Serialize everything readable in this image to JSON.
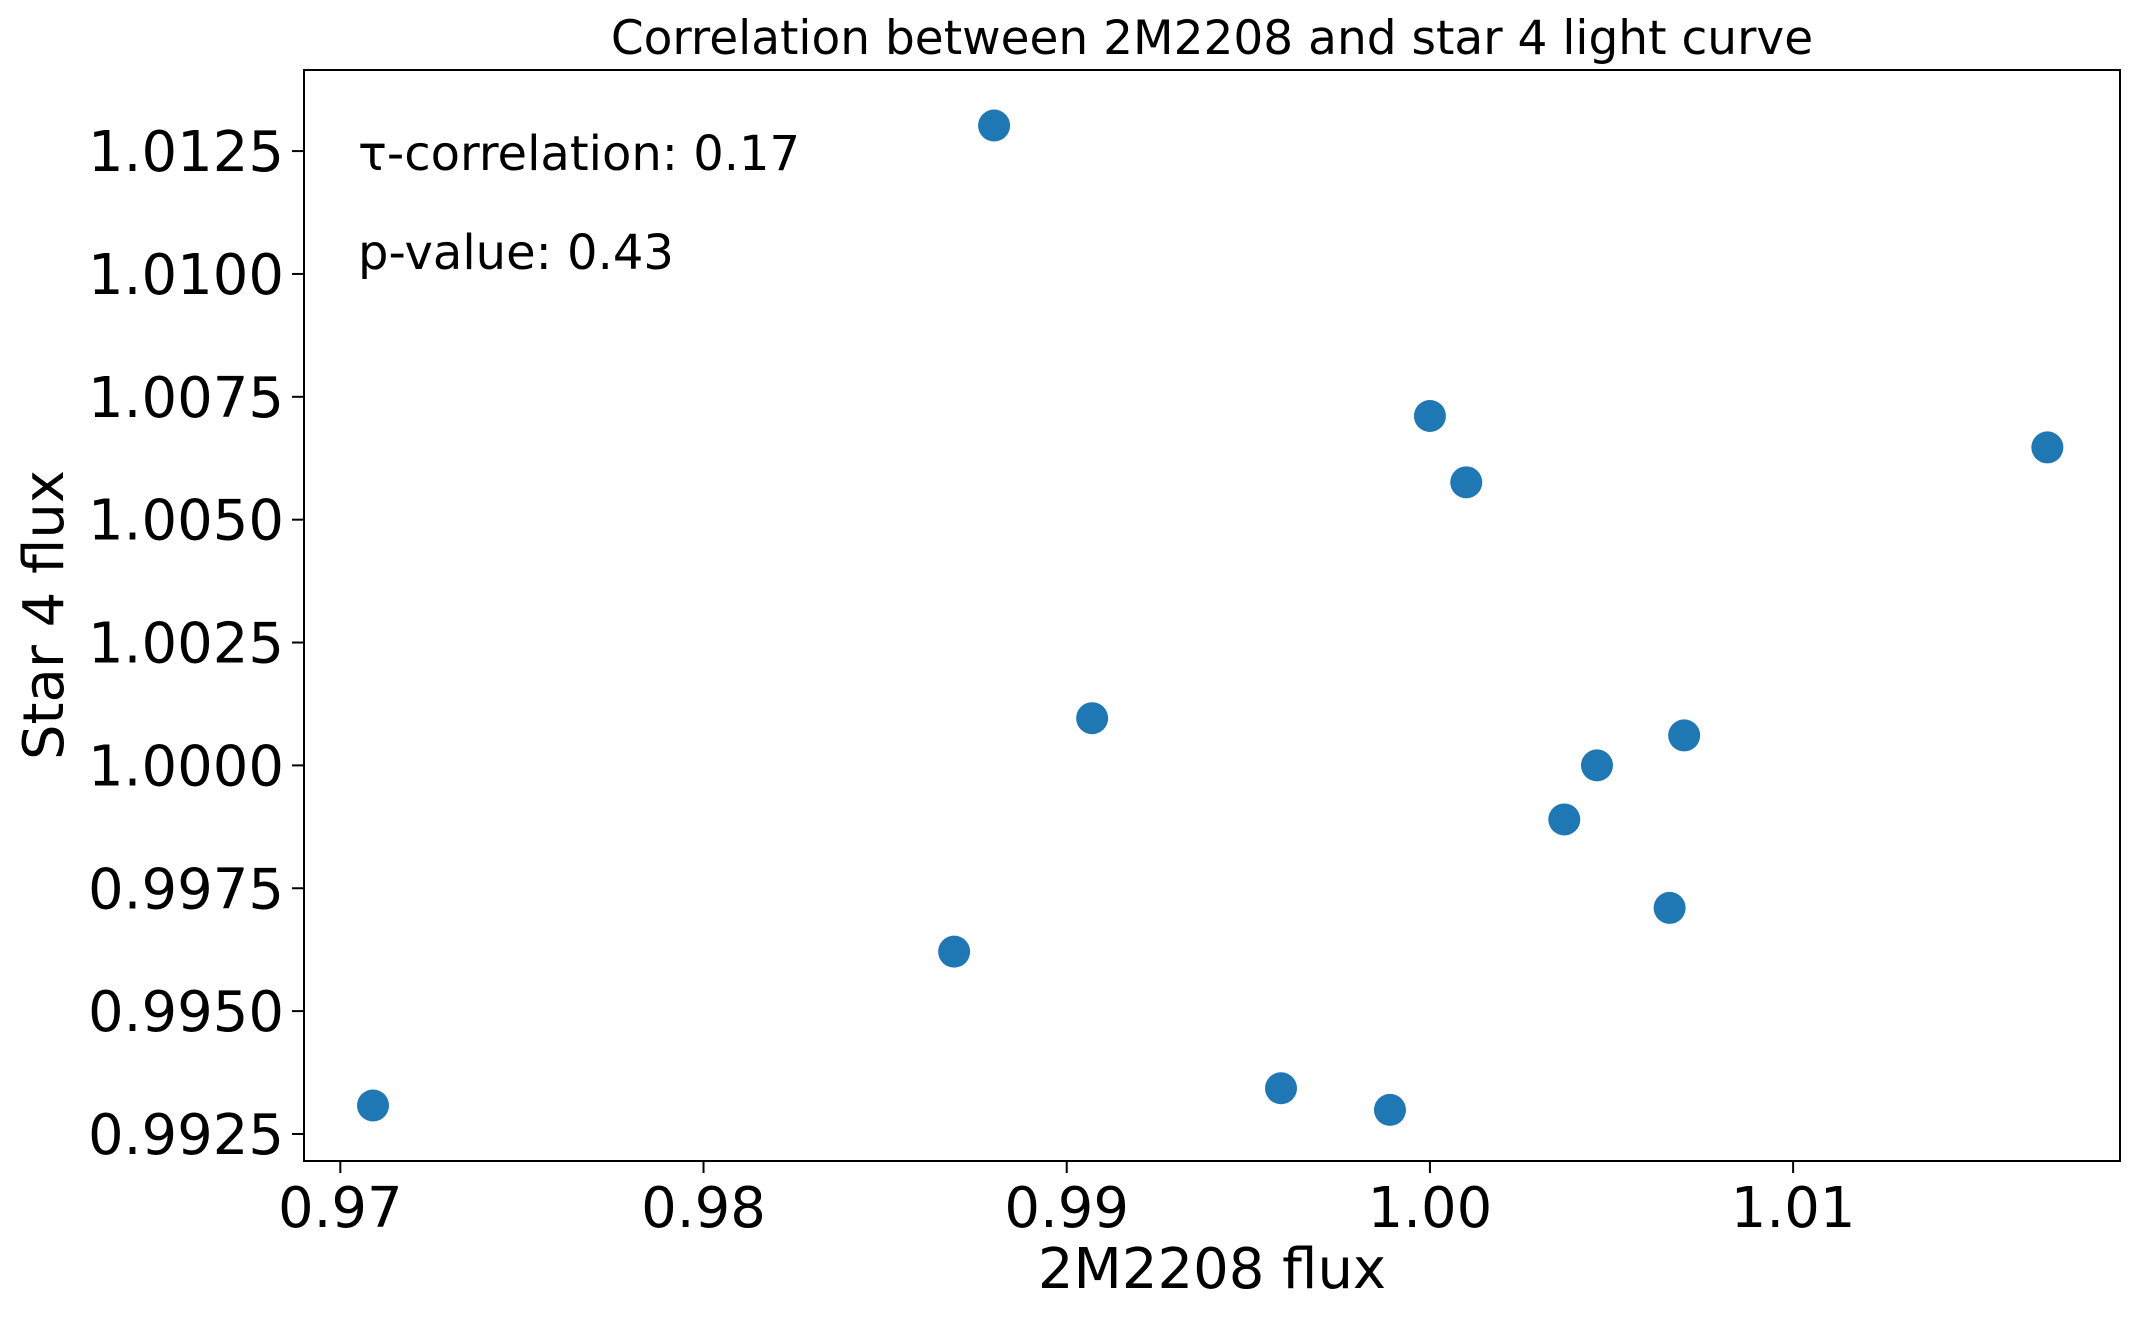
{
  "chart_data": {
    "type": "scatter",
    "title": "Correlation between 2M2208 and star 4 light curve",
    "xlabel": "2M2208 flux",
    "ylabel": "Star 4 flux",
    "xlim": [
      0.969,
      1.019
    ],
    "ylim": [
      0.99195,
      1.01415
    ],
    "x_ticks": [
      0.97,
      0.98,
      0.99,
      1.0,
      1.01
    ],
    "x_tick_labels": [
      "0.97",
      "0.98",
      "0.99",
      "1.00",
      "1.01"
    ],
    "y_ticks": [
      0.9925,
      0.995,
      0.9975,
      1.0,
      1.0025,
      1.005,
      1.0075,
      1.01,
      1.0125
    ],
    "y_tick_labels": [
      "0.9925",
      "0.9950",
      "0.9975",
      "1.0000",
      "1.0025",
      "1.0050",
      "1.0075",
      "1.0100",
      "1.0125"
    ],
    "grid": false,
    "marker_color": "#1f77b4",
    "series": [
      {
        "name": "star 4",
        "points": [
          {
            "x": 0.9709,
            "y": 0.99308
          },
          {
            "x": 0.9869,
            "y": 0.99621
          },
          {
            "x": 0.988,
            "y": 1.01302
          },
          {
            "x": 0.9907,
            "y": 1.00096
          },
          {
            "x": 0.9959,
            "y": 0.99343
          },
          {
            "x": 0.9989,
            "y": 0.99299
          },
          {
            "x": 1.0,
            "y": 1.00711
          },
          {
            "x": 1.001,
            "y": 1.00576
          },
          {
            "x": 1.0037,
            "y": 0.9989
          },
          {
            "x": 1.0046,
            "y": 1.0
          },
          {
            "x": 1.0066,
            "y": 0.9971
          },
          {
            "x": 1.007,
            "y": 1.00061
          },
          {
            "x": 1.017,
            "y": 1.00647
          }
        ]
      }
    ],
    "annotations": [
      {
        "id": "tau",
        "text": "τ-correlation: 0.17"
      },
      {
        "id": "pvalue",
        "text": "p-value: 0.43"
      }
    ]
  }
}
